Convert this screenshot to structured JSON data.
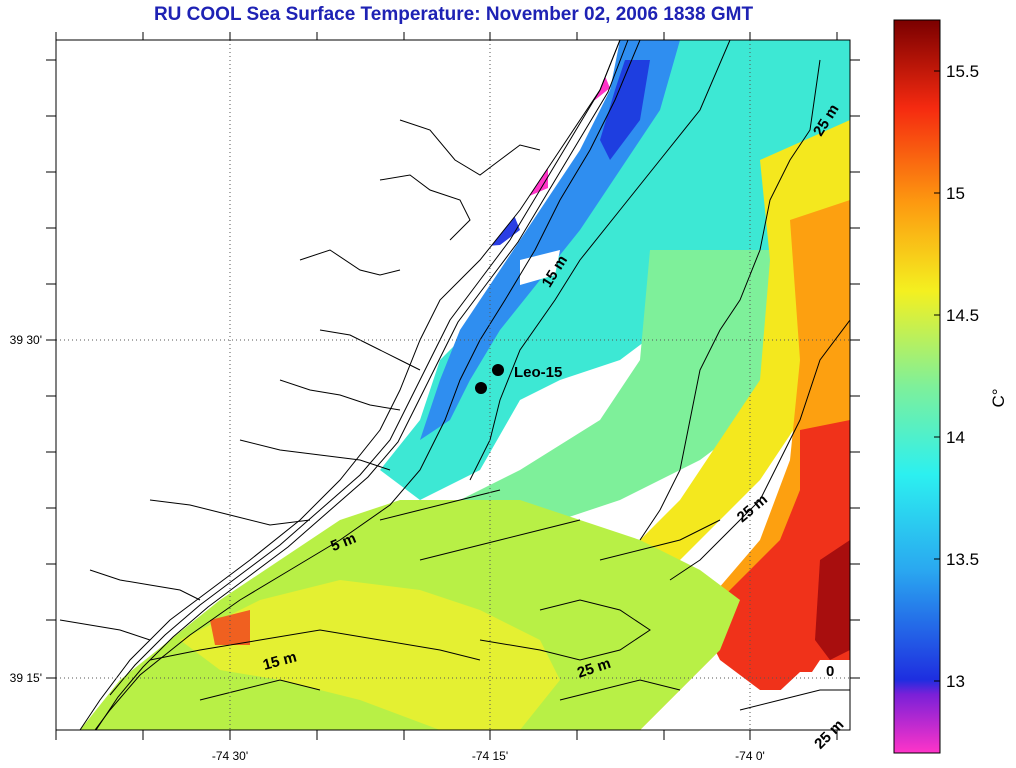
{
  "title": "RU COOL  Sea Surface Temperature:  November 02, 2006 1838 GMT",
  "axes": {
    "x_ticks": [
      "-74 30'",
      "-74 15'",
      "-74 0'"
    ],
    "y_ticks": [
      "39 30'",
      "39 15'"
    ]
  },
  "colorbar": {
    "unit": "C°",
    "ticks": [
      "15.5",
      "15",
      "14.5",
      "14",
      "13.5",
      "13"
    ],
    "range": [
      12.7,
      15.7
    ],
    "colors": [
      "#ff34c8",
      "#7a20d8",
      "#1e2ee0",
      "#2aa8f0",
      "#2cf0f0",
      "#7ef09a",
      "#f4f020",
      "#fd9a10",
      "#f52a10",
      "#7a0000"
    ]
  },
  "contour_labels": [
    "25 m",
    "15 m",
    "5 m",
    "25 m",
    "15 m",
    "25 m",
    "0",
    "25 m"
  ],
  "station": {
    "name": "Leo-15"
  },
  "chart_data": {
    "type": "heatmap",
    "title": "RU COOL  Sea Surface Temperature:  November 02, 2006 1838 GMT",
    "xlabel": "",
    "ylabel": "",
    "value_unit": "C°",
    "value_range": [
      12.7,
      15.7
    ],
    "x_ticks": [
      "-74 30'",
      "-74 15'",
      "-74 0'"
    ],
    "y_ticks": [
      "39 30'",
      "39 15'"
    ],
    "colorbar_ticks": [
      13,
      13.5,
      14,
      14.5,
      15,
      15.5
    ],
    "grid": "dotted",
    "station": "Leo-15"
  }
}
